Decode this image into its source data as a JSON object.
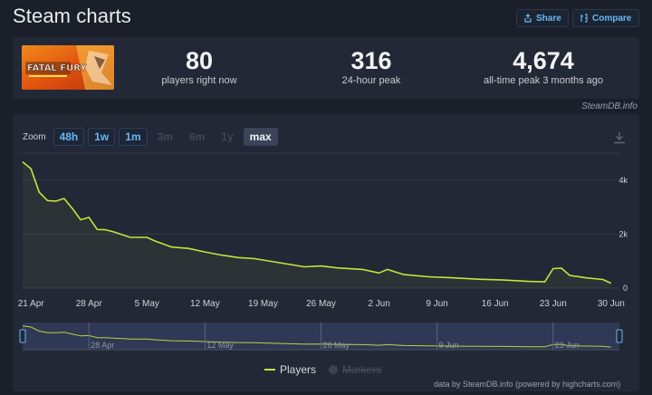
{
  "page": {
    "title": "Steam charts"
  },
  "header": {
    "share_label": "Share",
    "compare_label": "Compare"
  },
  "stats": [
    {
      "value": "80",
      "label": "players right now"
    },
    {
      "value": "316",
      "label": "24-hour peak"
    },
    {
      "value": "4,674",
      "label": "all-time peak 3 months ago"
    }
  ],
  "game_image": {
    "name": "FATAL FURY"
  },
  "credit": "SteamDB.info",
  "zoom": {
    "label": "Zoom",
    "buttons": [
      {
        "label": "48h",
        "state": "enabled"
      },
      {
        "label": "1w",
        "state": "enabled"
      },
      {
        "label": "1m",
        "state": "enabled"
      },
      {
        "label": "3m",
        "state": "disabled"
      },
      {
        "label": "6m",
        "state": "disabled"
      },
      {
        "label": "1y",
        "state": "disabled"
      },
      {
        "label": "max",
        "state": "selected"
      }
    ]
  },
  "legend": {
    "players": "Players",
    "markers": "Markers"
  },
  "footer_credit": "data by SteamDB.info (powered by highcharts.com)",
  "colors": {
    "line": "#c6e33b",
    "background": "#1b1f2a",
    "panel": "#232836",
    "accent": "#67b7f5"
  },
  "chart_data": {
    "type": "line",
    "series": [
      {
        "name": "Players"
      }
    ],
    "x_tick_labels": [
      "21 Apr",
      "28 Apr",
      "5 May",
      "12 May",
      "19 May",
      "26 May",
      "2 Jun",
      "9 Jun",
      "16 Jun",
      "23 Jun",
      "30 Jun"
    ],
    "y_tick_labels": [
      "0",
      "2k",
      "4k"
    ],
    "navigator_labels": [
      "28 Apr",
      "12 May",
      "26 May",
      "9 Jun",
      "23 Jun"
    ],
    "ylim": [
      0,
      5000
    ],
    "x": [
      "2025-04-20",
      "2025-04-21",
      "2025-04-22",
      "2025-04-23",
      "2025-04-24",
      "2025-04-25",
      "2025-04-26",
      "2025-04-27",
      "2025-04-28",
      "2025-04-29",
      "2025-04-30",
      "2025-05-01",
      "2025-05-03",
      "2025-05-05",
      "2025-05-06",
      "2025-05-08",
      "2025-05-10",
      "2025-05-12",
      "2025-05-14",
      "2025-05-16",
      "2025-05-18",
      "2025-05-21",
      "2025-05-24",
      "2025-05-26",
      "2025-05-28",
      "2025-05-31",
      "2025-06-02",
      "2025-06-03",
      "2025-06-05",
      "2025-06-08",
      "2025-06-11",
      "2025-06-14",
      "2025-06-17",
      "2025-06-20",
      "2025-06-22",
      "2025-06-23",
      "2025-06-24",
      "2025-06-25",
      "2025-06-27",
      "2025-06-29",
      "2025-06-30"
    ],
    "values": [
      4674,
      4420,
      3550,
      3240,
      3220,
      3320,
      2950,
      2530,
      2620,
      2170,
      2160,
      2080,
      1880,
      1880,
      1740,
      1520,
      1470,
      1340,
      1220,
      1130,
      1090,
      940,
      790,
      820,
      750,
      690,
      560,
      690,
      500,
      420,
      380,
      330,
      300,
      250,
      230,
      720,
      740,
      470,
      380,
      320,
      180
    ]
  }
}
